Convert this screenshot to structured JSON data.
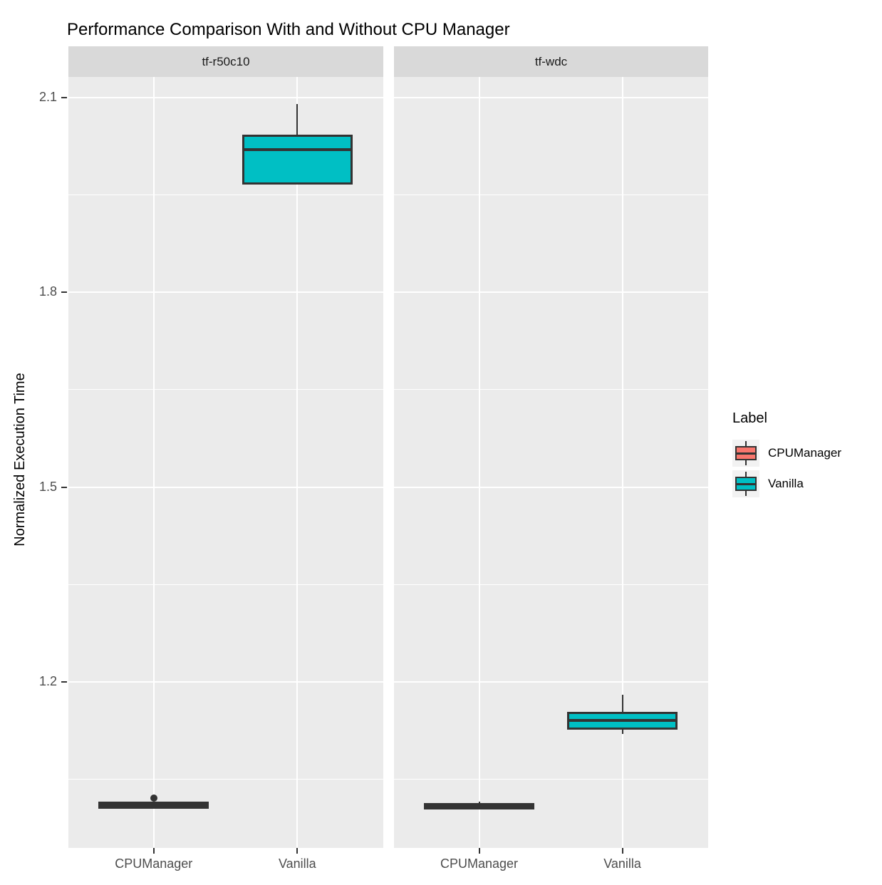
{
  "title": "Performance Comparison With and Without CPU Manager",
  "y_axis": {
    "label": "Normalized Execution Time",
    "tick_labels": [
      "2.1",
      "1.8",
      "1.5",
      "1.2"
    ]
  },
  "x_axis": {
    "categories": [
      "CPUManager",
      "Vanilla"
    ]
  },
  "legend": {
    "title": "Label",
    "entries": [
      {
        "label": "CPUManager",
        "color": "#F8766D"
      },
      {
        "label": "Vanilla",
        "color": "#00BFC4"
      }
    ]
  },
  "colors": {
    "panel_bg": "#EBEBEB",
    "strip_bg": "#D9D9D9",
    "grid": "#FFFFFF",
    "box_stroke": "#333333",
    "axis_text": "#4D4D4D",
    "cpumanager": "#F8766D",
    "vanilla": "#00BFC4"
  },
  "chart_data": {
    "type": "boxplot",
    "title": "Performance Comparison With and Without CPU Manager",
    "ylabel": "Normalized Execution Time",
    "xlabel": "",
    "ylim": [
      0.944,
      2.132
    ],
    "y_major_ticks": [
      2.1,
      1.8,
      1.5,
      1.2
    ],
    "y_minor_ticks": [
      1.95,
      1.65,
      1.35,
      1.05
    ],
    "grid": true,
    "legend_position": "right",
    "legend_title": "Label",
    "facets": [
      {
        "label": "tf-r50c10",
        "categories": [
          "CPUManager",
          "Vanilla"
        ],
        "boxes": [
          {
            "category": "CPUManager",
            "series": "CPUManager",
            "min": 1.005,
            "q1": 1.008,
            "median": 1.01,
            "q3": 1.012,
            "max": 1.012,
            "outliers": [
              1.021
            ]
          },
          {
            "category": "Vanilla",
            "series": "Vanilla",
            "min": 1.97,
            "q1": 1.97,
            "median": 2.02,
            "q3": 2.04,
            "max": 2.09,
            "outliers": []
          }
        ]
      },
      {
        "label": "tf-wdc",
        "categories": [
          "CPUManager",
          "Vanilla"
        ],
        "boxes": [
          {
            "category": "CPUManager",
            "series": "CPUManager",
            "min": 1.007,
            "q1": 1.007,
            "median": 1.009,
            "q3": 1.01,
            "max": 1.015,
            "outliers": []
          },
          {
            "category": "Vanilla",
            "series": "Vanilla",
            "min": 1.12,
            "q1": 1.13,
            "median": 1.14,
            "q3": 1.15,
            "max": 1.18,
            "outliers": []
          }
        ]
      }
    ]
  }
}
